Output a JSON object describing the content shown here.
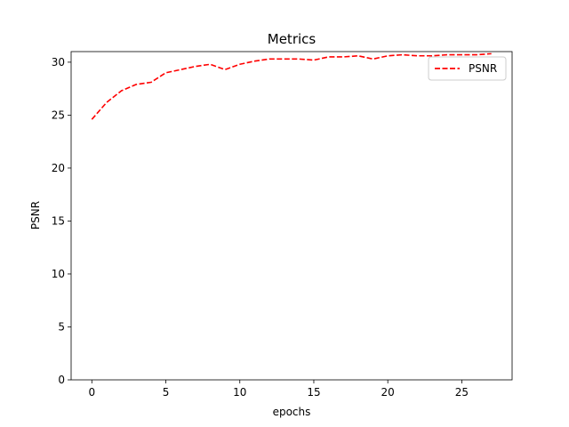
{
  "chart_data": {
    "type": "line",
    "title": "Metrics",
    "xlabel": "epochs",
    "ylabel": "PSNR",
    "xlim": [
      -1.4,
      28.4
    ],
    "ylim": [
      0,
      31
    ],
    "xticks": [
      0,
      5,
      10,
      15,
      20,
      25
    ],
    "yticks": [
      0,
      5,
      10,
      15,
      20,
      25,
      30
    ],
    "grid": false,
    "legend_position": "top-right",
    "series": [
      {
        "name": "PSNR",
        "color": "#ff0000",
        "line_style": "dashed",
        "x": [
          0,
          1,
          2,
          3,
          4,
          5,
          6,
          7,
          8,
          9,
          10,
          11,
          12,
          13,
          14,
          15,
          16,
          17,
          18,
          19,
          20,
          21,
          22,
          23,
          24,
          25,
          26,
          27
        ],
        "y": [
          24.6,
          26.2,
          27.3,
          27.9,
          28.1,
          29.0,
          29.3,
          29.6,
          29.8,
          29.3,
          29.8,
          30.1,
          30.3,
          30.3,
          30.3,
          30.2,
          30.5,
          30.5,
          30.6,
          30.3,
          30.6,
          30.7,
          30.6,
          30.6,
          30.7,
          30.7,
          30.7,
          30.8
        ]
      }
    ]
  }
}
